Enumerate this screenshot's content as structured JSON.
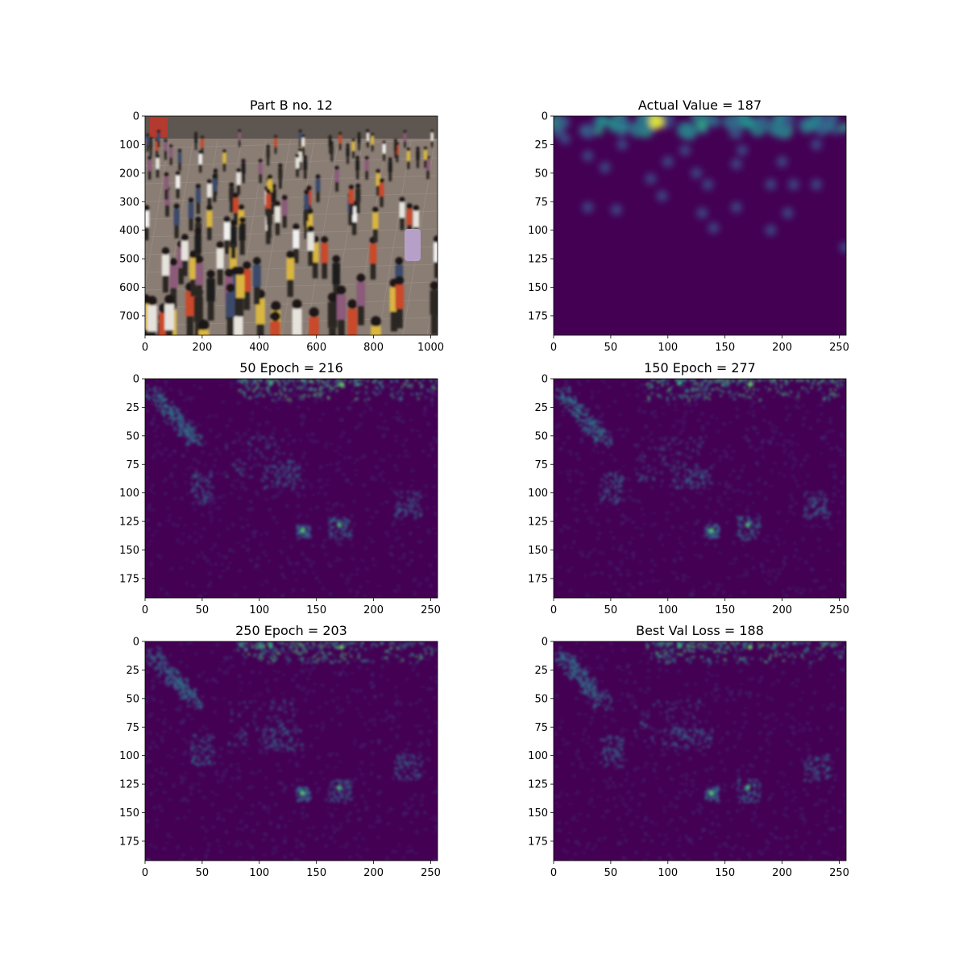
{
  "colors": {
    "background": "#ffffff",
    "axis": "#000000",
    "heatmap_low": "#440154",
    "heatmap_mid": "#21918c",
    "heatmap_high": "#fde725",
    "photo_pavement": "#8a7d74",
    "photo_people": "#2b2624"
  },
  "chart_data": [
    {
      "type": "image",
      "title": "Part B no. 12",
      "content": "photo",
      "xlim": [
        0,
        1024
      ],
      "ylim": [
        768,
        0
      ],
      "xticks": [
        0,
        200,
        400,
        600,
        800,
        1000
      ],
      "yticks": [
        0,
        100,
        200,
        300,
        400,
        500,
        600,
        700
      ]
    },
    {
      "type": "heatmap",
      "title": "Actual Value = 187",
      "colormap": "viridis",
      "xlim": [
        0,
        256
      ],
      "ylim": [
        192,
        0
      ],
      "xticks": [
        0,
        50,
        100,
        150,
        200,
        250
      ],
      "yticks": [
        0,
        25,
        50,
        75,
        100,
        125,
        150,
        175
      ],
      "style": "smooth"
    },
    {
      "type": "heatmap",
      "title": "50 Epoch = 216",
      "colormap": "viridis",
      "xlim": [
        0,
        256
      ],
      "ylim": [
        192,
        0
      ],
      "xticks": [
        0,
        50,
        100,
        150,
        200,
        250
      ],
      "yticks": [
        0,
        25,
        50,
        75,
        100,
        125,
        150,
        175
      ],
      "style": "noisy"
    },
    {
      "type": "heatmap",
      "title": "150 Epoch = 277",
      "colormap": "viridis",
      "xlim": [
        0,
        256
      ],
      "ylim": [
        192,
        0
      ],
      "xticks": [
        0,
        50,
        100,
        150,
        200,
        250
      ],
      "yticks": [
        0,
        25,
        50,
        75,
        100,
        125,
        150,
        175
      ],
      "style": "noisy"
    },
    {
      "type": "heatmap",
      "title": "250 Epoch = 203",
      "colormap": "viridis",
      "xlim": [
        0,
        256
      ],
      "ylim": [
        192,
        0
      ],
      "xticks": [
        0,
        50,
        100,
        150,
        200,
        250
      ],
      "yticks": [
        0,
        25,
        50,
        75,
        100,
        125,
        150,
        175
      ],
      "style": "noisy"
    },
    {
      "type": "heatmap",
      "title": "Best Val Loss = 188",
      "colormap": "viridis",
      "xlim": [
        0,
        256
      ],
      "ylim": [
        192,
        0
      ],
      "xticks": [
        0,
        50,
        100,
        150,
        200,
        250
      ],
      "yticks": [
        0,
        25,
        50,
        75,
        100,
        125,
        150,
        175
      ],
      "style": "noisy"
    }
  ]
}
